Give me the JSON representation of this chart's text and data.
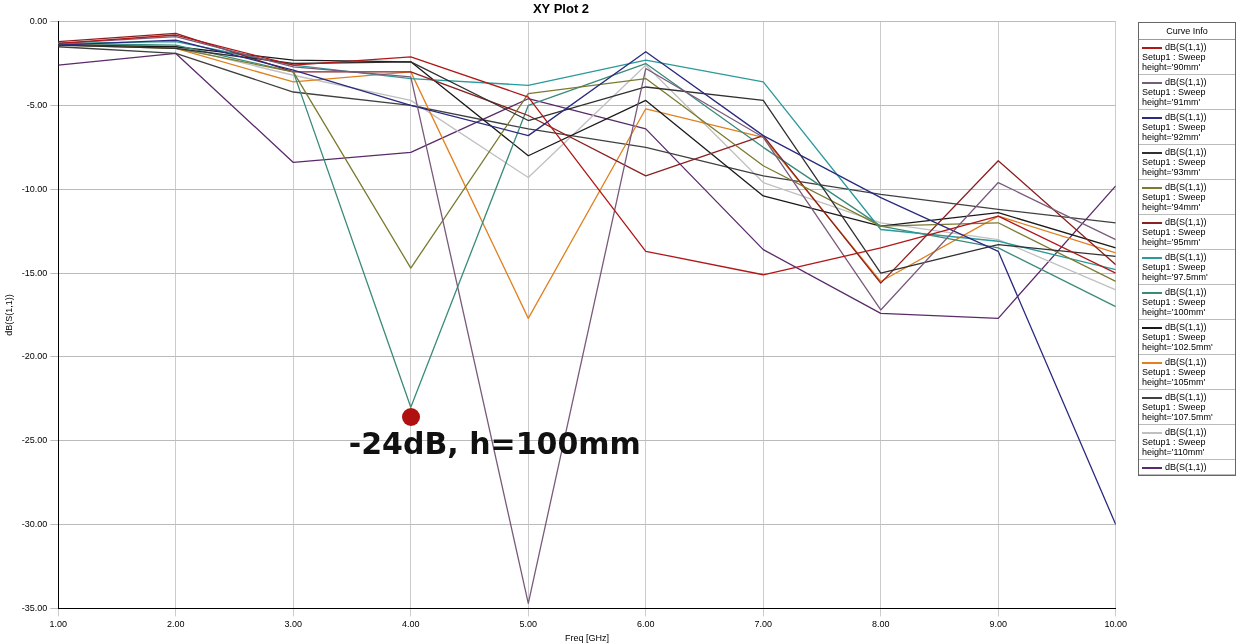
{
  "chart_data": {
    "type": "line",
    "title": "XY Plot 2",
    "xlabel": "Freq [GHz]",
    "ylabel": "dB(S(1,1))",
    "legend_title": "Curve Info",
    "legend": "right",
    "grid": true,
    "marker": "none",
    "line_style": "solid",
    "x": [
      1,
      2,
      3,
      4,
      5,
      6,
      7,
      8,
      9,
      10
    ],
    "xlim": [
      1,
      10
    ],
    "xticks": [
      {
        "value": 1,
        "label": "1.00"
      },
      {
        "value": 2,
        "label": "2.00"
      },
      {
        "value": 3,
        "label": "3.00"
      },
      {
        "value": 4,
        "label": "4.00"
      },
      {
        "value": 5,
        "label": "5.00"
      },
      {
        "value": 6,
        "label": "6.00"
      },
      {
        "value": 7,
        "label": "7.00"
      },
      {
        "value": 8,
        "label": "8.00"
      },
      {
        "value": 9,
        "label": "9.00"
      },
      {
        "value": 10,
        "label": "10.00"
      }
    ],
    "ylim": [
      -35,
      0
    ],
    "yticks": [
      {
        "value": -35,
        "label": "-35.00"
      },
      {
        "value": -30,
        "label": "-30.00"
      },
      {
        "value": -25,
        "label": "-25.00"
      },
      {
        "value": -20,
        "label": "-20.00"
      },
      {
        "value": -15,
        "label": "-15.00"
      },
      {
        "value": -10,
        "label": "-10.00"
      },
      {
        "value": -5,
        "label": "-5.00"
      },
      {
        "value": 0,
        "label": "0.00"
      }
    ],
    "series": [
      {
        "name": "dB(S(1,1))\nSetup1 : Sweep\nheight='90mm'",
        "color": "#b01818",
        "values": [
          -1.3,
          -0.8,
          -2.6,
          -2.1,
          -4.5,
          -13.7,
          -15.1,
          -13.5,
          -11.6,
          -15.0
        ]
      },
      {
        "name": "dB(S(1,1))\nSetup1 : Sweep\nheight='91mm'",
        "color": "#7a5a7a",
        "values": [
          -1.3,
          -0.9,
          -2.7,
          -3.3,
          -34.7,
          -2.8,
          -6.9,
          -17.2,
          -9.6,
          -13.0
        ]
      },
      {
        "name": "dB(S(1,1))\nSetup1 : Sweep\nheight='92mm'",
        "color": "#2a2a80",
        "values": [
          -1.4,
          -1.1,
          -2.9,
          -5.0,
          -6.8,
          -1.8,
          -6.8,
          -10.5,
          -13.7,
          -30.0
        ]
      },
      {
        "name": "dB(S(1,1))\nSetup1 : Sweep\nheight='93mm'",
        "color": "#303030",
        "values": [
          -1.4,
          -1.6,
          -2.5,
          -2.4,
          -5.9,
          -3.9,
          -4.7,
          -15.0,
          -13.3,
          -14.0
        ]
      },
      {
        "name": "dB(S(1,1))\nSetup1 : Sweep\nheight='94mm'",
        "color": "#7a7a30",
        "values": [
          -1.4,
          -1.6,
          -3.0,
          -14.7,
          -4.3,
          -3.4,
          -8.6,
          -12.2,
          -12.0,
          -15.5
        ]
      },
      {
        "name": "dB(S(1,1))\nSetup1 : Sweep\nheight='95mm'",
        "color": "#8b2020",
        "values": [
          -1.2,
          -0.7,
          -3.0,
          -3.0,
          -5.6,
          -9.2,
          -6.8,
          -15.6,
          -8.3,
          -14.5
        ]
      },
      {
        "name": "dB(S(1,1))\nSetup1 : Sweep\nheight='97.5mm'",
        "color": "#2a9a9a",
        "values": [
          -1.3,
          -1.2,
          -2.6,
          -3.4,
          -3.8,
          -2.3,
          -3.6,
          -12.4,
          -13.1,
          -14.8
        ]
      },
      {
        "name": "dB(S(1,1))\nSetup1 : Sweep\nheight='100mm'",
        "color": "#3a8a7a",
        "values": [
          -1.3,
          -1.4,
          -3.0,
          -23.0,
          -5.0,
          -2.5,
          -7.5,
          -12.2,
          -13.5,
          -17.0
        ]
      },
      {
        "name": "dB(S(1,1))\nSetup1 : Sweep\nheight='102.5mm'",
        "color": "#1a1a1a",
        "values": [
          -1.4,
          -1.5,
          -2.3,
          -2.4,
          -8.0,
          -4.7,
          -10.4,
          -12.2,
          -11.4,
          -13.5
        ]
      },
      {
        "name": "dB(S(1,1))\nSetup1 : Sweep\nheight='105mm'",
        "color": "#e08020",
        "values": [
          -1.3,
          -1.6,
          -3.6,
          -3.0,
          -17.7,
          -5.2,
          -6.9,
          -15.5,
          -11.6,
          -13.8
        ]
      },
      {
        "name": "dB(S(1,1))\nSetup1 : Sweep\nheight='107.5mm'",
        "color": "#404040",
        "values": [
          -1.5,
          -1.9,
          -4.2,
          -5.0,
          -6.4,
          -7.5,
          -9.2,
          -10.3,
          -11.2,
          -12.0
        ]
      },
      {
        "name": "dB(S(1,1))\nSetup1 : Sweep\nheight='110mm'",
        "color": "#c0c0c0",
        "values": [
          -1.3,
          -1.5,
          -3.2,
          -4.7,
          -9.3,
          -2.6,
          -9.6,
          -12.0,
          -13.0,
          -16.0
        ]
      },
      {
        "name": "dB(S(1,1))",
        "color": "#5a2a6a",
        "values": [
          -2.6,
          -1.9,
          -8.4,
          -7.8,
          -4.6,
          -6.4,
          -13.6,
          -17.4,
          -17.7,
          -9.8
        ]
      }
    ],
    "annotations": [
      {
        "text": "-24dB, h=100mm",
        "x": 4,
        "y": -23.6
      }
    ]
  }
}
